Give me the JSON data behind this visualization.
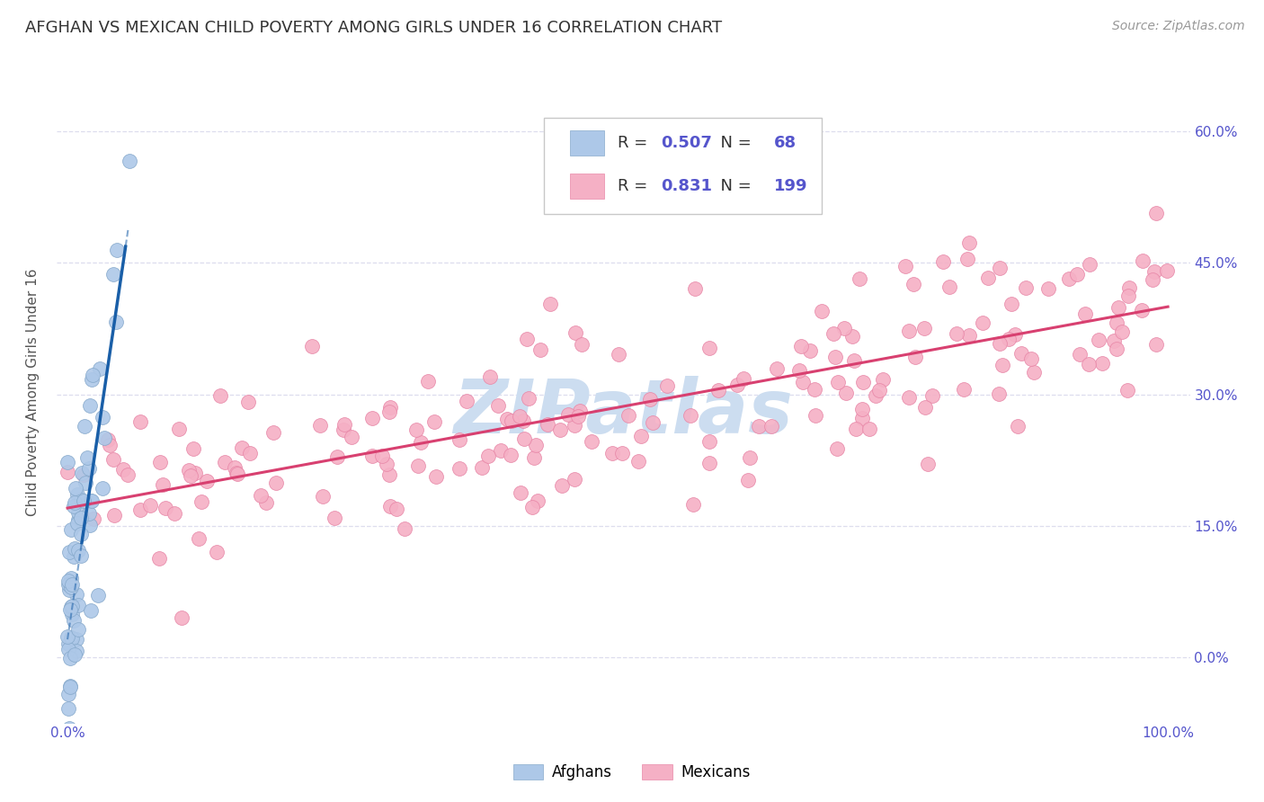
{
  "title": "AFGHAN VS MEXICAN CHILD POVERTY AMONG GIRLS UNDER 16 CORRELATION CHART",
  "source": "Source: ZipAtlas.com",
  "ylabel": "Child Poverty Among Girls Under 16",
  "afghan_color": "#adc8e8",
  "afghan_edge_color": "#88aacc",
  "mexican_color": "#f5b0c5",
  "mexican_edge_color": "#e888a8",
  "afghan_line_color": "#1a5fa8",
  "mexican_line_color": "#d84070",
  "watermark_text": "ZIPatlas",
  "watermark_color": "#ccddf0",
  "legend_R_afghan": "0.507",
  "legend_N_afghan": "68",
  "legend_R_mexican": "0.831",
  "legend_N_mexican": "199",
  "label_color": "#5555cc",
  "background_color": "#ffffff",
  "grid_color": "#ddddee",
  "title_fontsize": 13,
  "axis_label_fontsize": 11,
  "tick_fontsize": 11,
  "legend_fontsize": 13,
  "ytick_vals": [
    0.0,
    0.15,
    0.3,
    0.45,
    0.6
  ],
  "ytick_labels": [
    "0.0%",
    "15.0%",
    "30.0%",
    "45.0%",
    "60.0%"
  ],
  "xtick_vals": [
    0.0,
    0.1,
    0.2,
    0.3,
    0.4,
    0.5,
    0.6,
    0.7,
    0.8,
    0.9,
    1.0
  ],
  "xtick_labels": [
    "0.0%",
    "",
    "",
    "",
    "",
    "",
    "",
    "",
    "",
    "",
    "100.0%"
  ]
}
